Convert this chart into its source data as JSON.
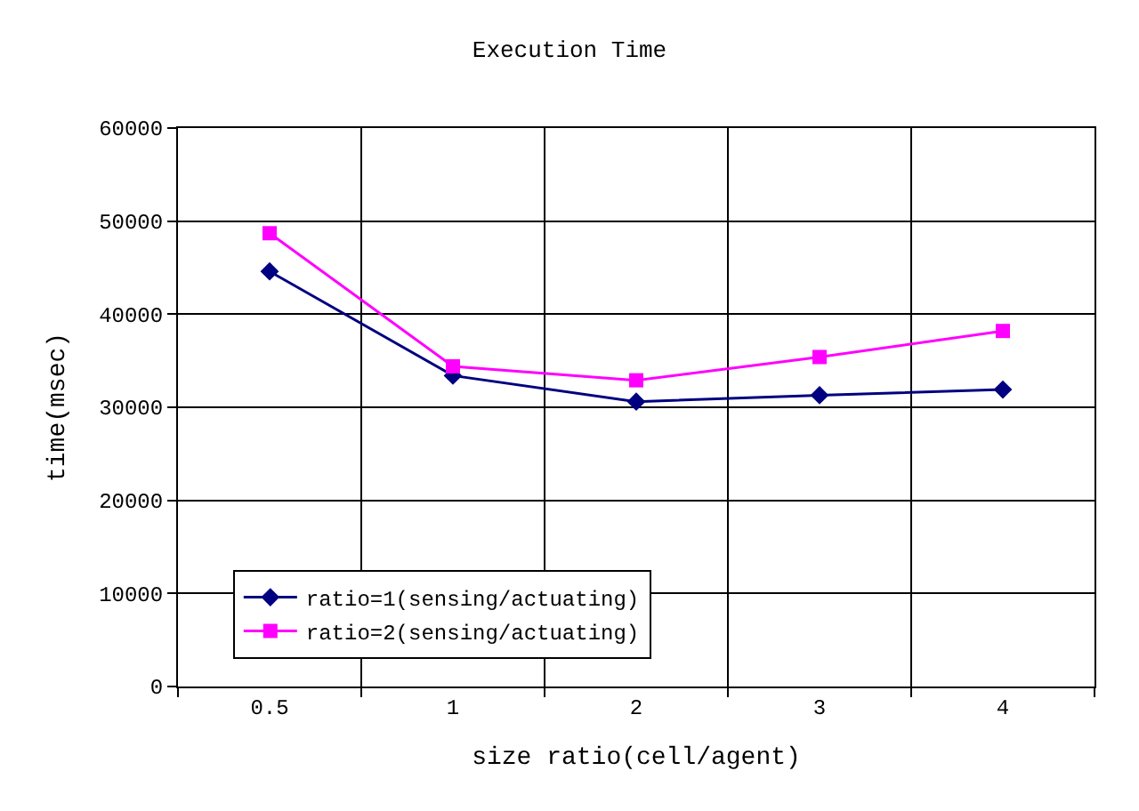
{
  "chart_data": {
    "type": "line",
    "title": "Execution Time",
    "xlabel": "size ratio(cell/agent)",
    "ylabel": "time(msec)",
    "categories": [
      "0.5",
      "1",
      "2",
      "3",
      "4"
    ],
    "series": [
      {
        "name": "ratio=1(sensing/actuating)",
        "color": "#000080",
        "marker": "diamond",
        "values": [
          44600,
          33400,
          30600,
          31300,
          31900
        ]
      },
      {
        "name": "ratio=2(sensing/actuating)",
        "color": "#ff00ff",
        "marker": "square",
        "values": [
          48700,
          34400,
          32900,
          35400,
          38200
        ]
      }
    ],
    "ylim": [
      0,
      60000
    ],
    "yticks": [
      0,
      10000,
      20000,
      30000,
      40000,
      50000,
      60000
    ],
    "grid": true,
    "legend": "bottom left",
    "line_style": "solid"
  }
}
